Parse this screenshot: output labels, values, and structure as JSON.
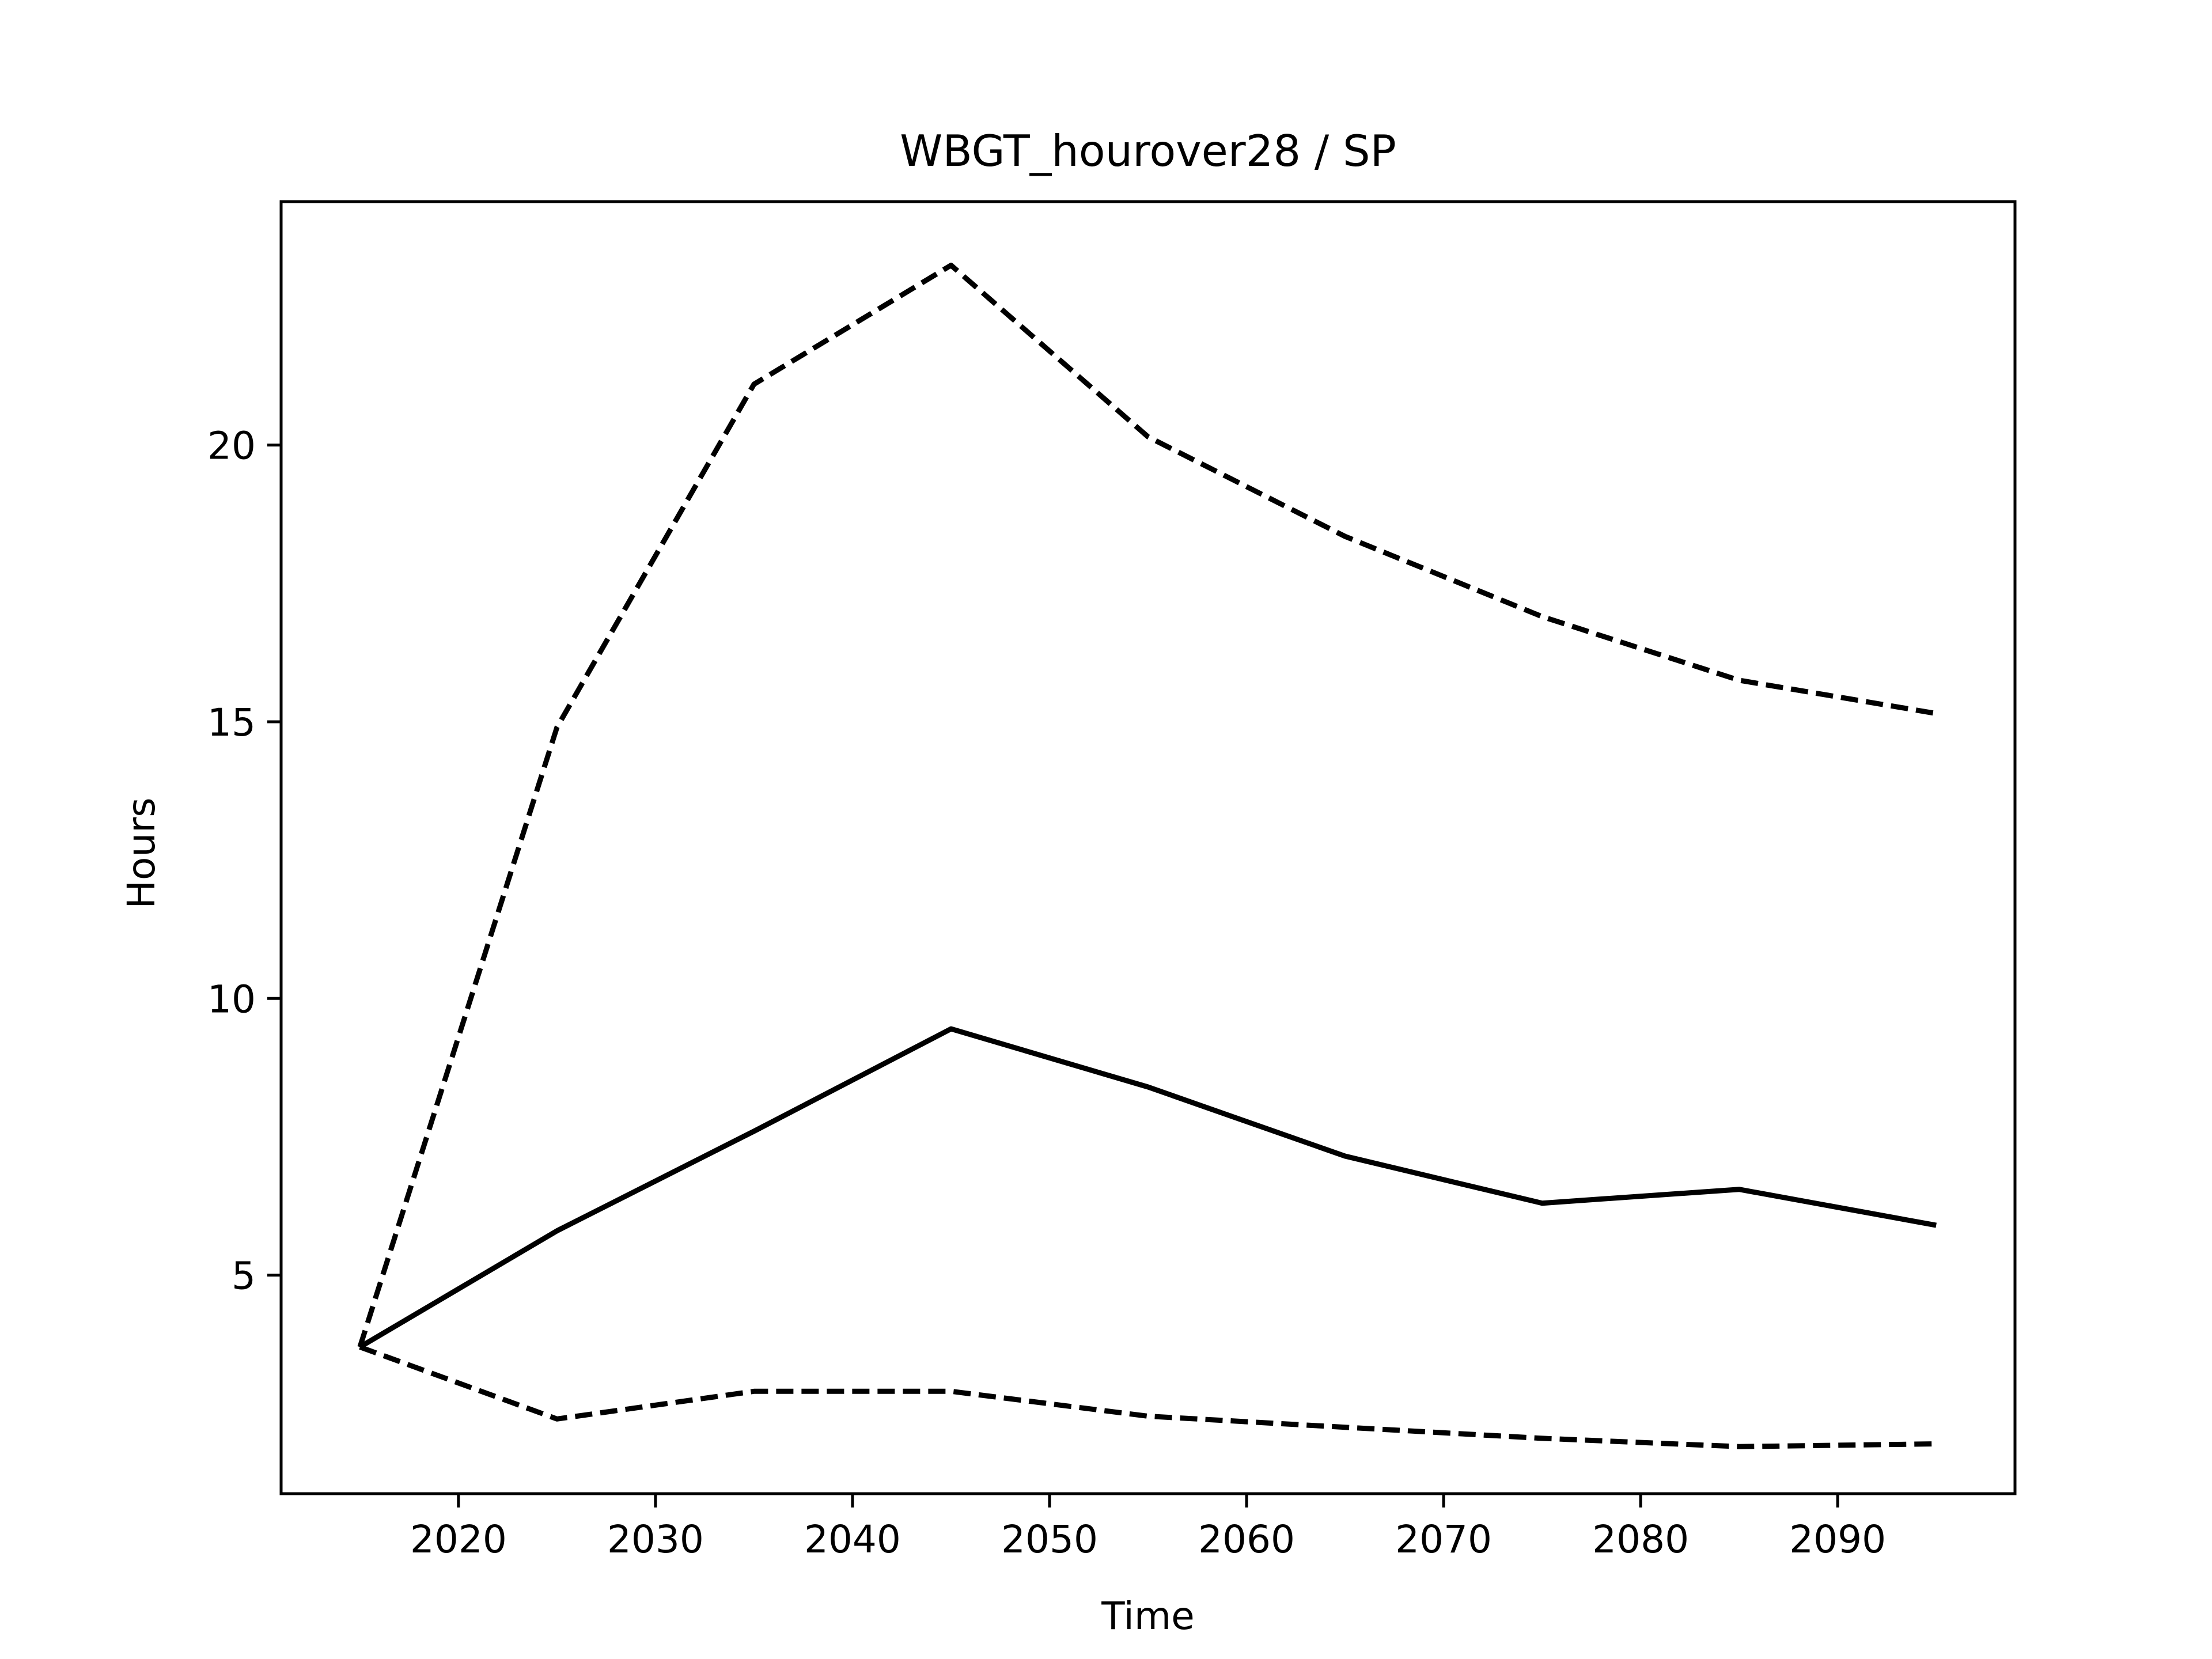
{
  "chart_data": {
    "type": "line",
    "title": "WBGT_hourover28 / SP",
    "xlabel": "Time",
    "ylabel": "Hours",
    "xlim": [
      2011,
      2099
    ],
    "ylim": [
      1.05,
      24.4
    ],
    "xticks": [
      2020,
      2030,
      2040,
      2050,
      2060,
      2070,
      2080,
      2090
    ],
    "yticks": [
      5,
      10,
      15,
      20
    ],
    "grid": false,
    "legend": null,
    "x": [
      2015,
      2025,
      2035,
      2045,
      2055,
      2065,
      2075,
      2085,
      2095
    ],
    "series": [
      {
        "values": [
          3.7,
          5.8,
          7.6,
          9.45,
          8.4,
          7.15,
          6.3,
          6.55,
          5.9
        ],
        "style": "solid",
        "color": "#000000"
      },
      {
        "values": [
          3.7,
          14.9,
          21.1,
          23.25,
          20.15,
          18.35,
          16.9,
          15.75,
          15.15
        ],
        "style": "dashed",
        "color": "#000000"
      },
      {
        "values": [
          3.7,
          2.4,
          2.9,
          2.9,
          2.45,
          2.25,
          2.05,
          1.9,
          1.95
        ],
        "style": "dashed",
        "color": "#000000"
      }
    ]
  }
}
